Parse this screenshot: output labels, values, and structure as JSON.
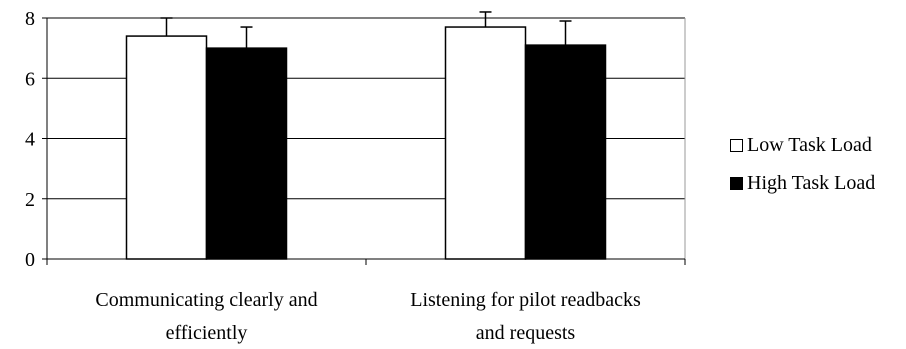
{
  "chart_data": {
    "type": "bar",
    "title": "",
    "xlabel": "",
    "ylabel": "",
    "categories": [
      [
        "Communicating clearly and",
        "efficiently"
      ],
      [
        "Listening for pilot readbacks",
        "and requests"
      ]
    ],
    "series": [
      {
        "name": "Low Task Load",
        "color": "#ffffff",
        "values": [
          7.4,
          7.7
        ],
        "error": [
          0.6,
          0.5
        ]
      },
      {
        "name": "High Task Load",
        "color": "#000000",
        "values": [
          7.0,
          7.1
        ],
        "error": [
          0.7,
          0.8
        ]
      }
    ],
    "ylim": [
      0,
      8
    ],
    "yticks": [
      0,
      2,
      4,
      6,
      8
    ],
    "grid": true,
    "legend_position": "right"
  }
}
